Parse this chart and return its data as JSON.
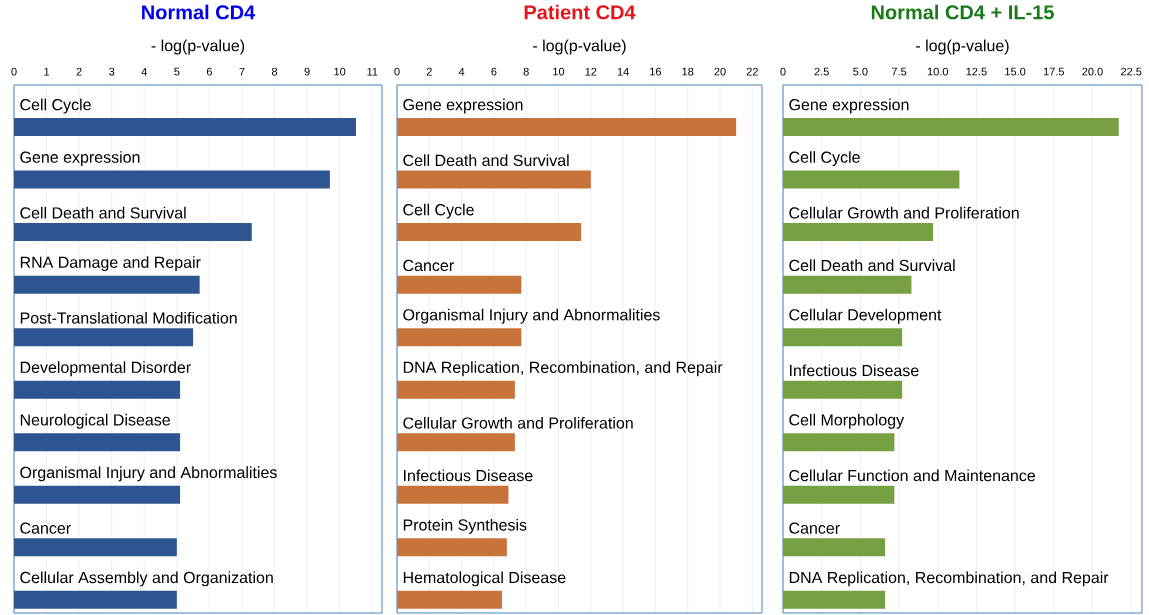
{
  "chart_data": [
    {
      "type": "bar",
      "orientation": "horizontal",
      "title": "Normal CD4",
      "xlabel": "- log(p-value)",
      "categories": [
        "Cell Cycle",
        "Gene expression",
        "Cell Death and Survival",
        "RNA Damage and Repair",
        "Post-Translational Modification",
        "Developmental Disorder",
        "Neurological Disease",
        "Organismal Injury and Abnormalities",
        "Cancer",
        "Cellular Assembly and Organization"
      ],
      "values": [
        10.5,
        9.7,
        7.3,
        5.7,
        5.5,
        5.1,
        5.1,
        5.1,
        5.0,
        5.0
      ],
      "color": "#2e5592",
      "xlim": [
        0,
        11.3
      ],
      "xticks": [
        0,
        1,
        2,
        3,
        4,
        5,
        6,
        7,
        8,
        9,
        10,
        11
      ],
      "grid": "x"
    },
    {
      "type": "bar",
      "orientation": "horizontal",
      "title": "Patient CD4",
      "xlabel": "- log(p-value)",
      "categories": [
        "Gene expression",
        "Cell Death and Survival",
        "Cell Cycle",
        "Cancer",
        "Organismal Injury and Abnormalities",
        "DNA Replication, Recombination, and Repair",
        "Cellular Growth and Proliferation",
        "Infectious Disease",
        "Protein Synthesis",
        "Hematological Disease"
      ],
      "values": [
        21.0,
        12.0,
        11.4,
        7.7,
        7.7,
        7.3,
        7.3,
        6.9,
        6.8,
        6.5
      ],
      "color": "#c8733a",
      "xlim": [
        0,
        22.6
      ],
      "xticks": [
        0,
        2,
        4,
        6,
        8,
        10,
        12,
        14,
        16,
        18,
        20,
        22
      ],
      "grid": "x"
    },
    {
      "type": "bar",
      "orientation": "horizontal",
      "title": "Normal CD4 + IL-15",
      "xlabel": "- log(p-value)",
      "categories": [
        "Gene expression",
        "Cell Cycle",
        "Cellular Growth and Proliferation",
        "Cell Death and Survival",
        "Cellular Development",
        "Infectious Disease",
        "Cell Morphology",
        "Cellular Function and Maintenance",
        "Cancer",
        "DNA Replication, Recombination, and Repair"
      ],
      "values": [
        21.7,
        11.4,
        9.7,
        8.3,
        7.7,
        7.7,
        7.2,
        7.2,
        6.6,
        6.6
      ],
      "color": "#76a042",
      "xlim": [
        0,
        23.2
      ],
      "xticks": [
        0,
        2.5,
        {
          "value": 5,
          "label": "5.0"
        },
        7.5,
        {
          "value": 10,
          "label": "10.0"
        },
        12.5,
        {
          "value": 15,
          "label": "15.0"
        },
        17.5,
        {
          "value": 20,
          "label": "20.0"
        },
        22.5
      ],
      "grid": "x"
    }
  ]
}
